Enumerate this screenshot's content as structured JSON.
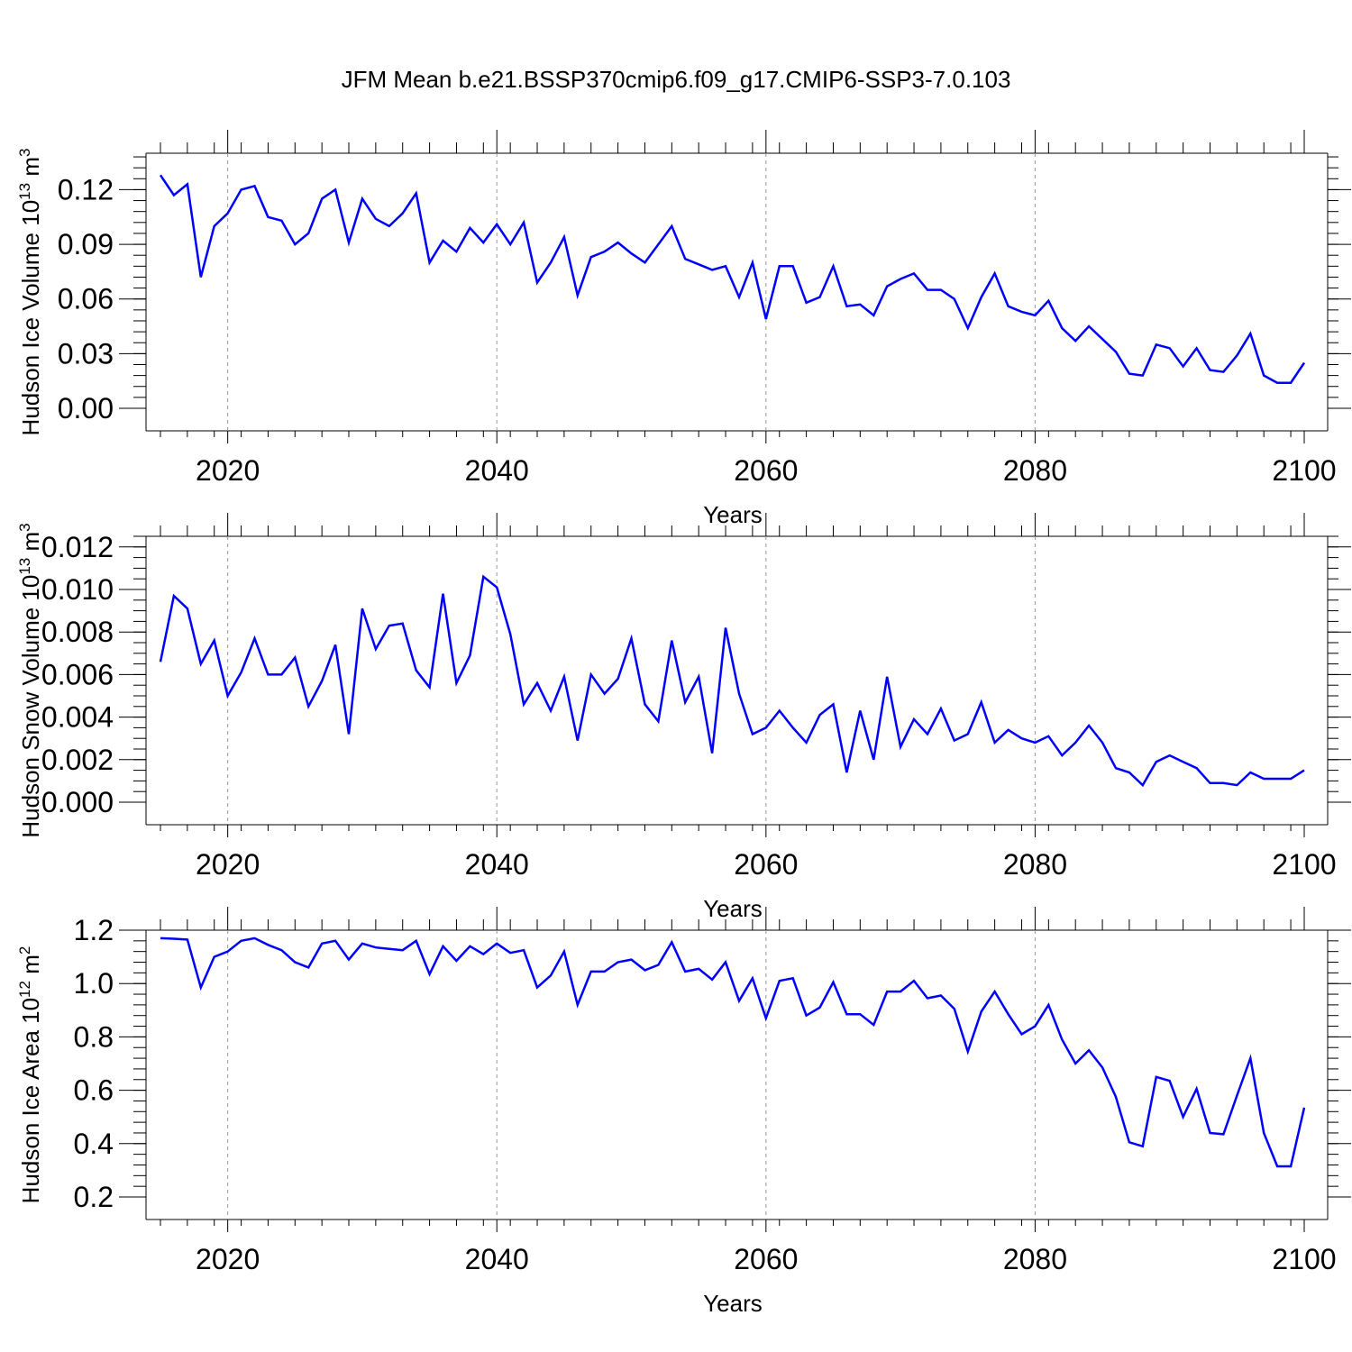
{
  "figure": {
    "title": "JFM Mean b.e21.BSSP370cmip6.f09_g17.CMIP6-SSP3-7.0.103",
    "line_color": "#0000ff",
    "gridline_color": "#999999"
  },
  "chart_data": [
    {
      "type": "line",
      "ylabel": {
        "main": "Hudson Ice Volume 10",
        "sup": "13",
        "unit": " m",
        "unit_sup": "3"
      },
      "xlabel": "Years",
      "xlim": [
        2015,
        2100
      ],
      "ylim": [
        0.0,
        0.14
      ],
      "xticks": [
        2020,
        2040,
        2060,
        2080,
        2100
      ],
      "xtick_labels": [
        "2020",
        "2040",
        "2060",
        "2080",
        "2100"
      ],
      "yticks": [
        0.0,
        0.03,
        0.06,
        0.09,
        0.12
      ],
      "ytick_labels": [
        "0.00",
        "0.03",
        "0.06",
        "0.09",
        "0.12"
      ],
      "y_minor_step": 0.006,
      "x_minor_step": 2,
      "grid": "vertical dashed at major x ticks",
      "series": [
        {
          "x": [
            2015,
            2016,
            2017,
            2018,
            2019,
            2020,
            2021,
            2022,
            2023,
            2024,
            2025,
            2026,
            2027,
            2028,
            2029,
            2030,
            2031,
            2032,
            2033,
            2034,
            2035,
            2036,
            2037,
            2038,
            2039,
            2040,
            2041,
            2042,
            2043,
            2044,
            2045,
            2046,
            2047,
            2048,
            2049,
            2050,
            2051,
            2052,
            2053,
            2054,
            2055,
            2056,
            2057,
            2058,
            2059,
            2060,
            2061,
            2062,
            2063,
            2064,
            2065,
            2066,
            2067,
            2068,
            2069,
            2070,
            2071,
            2072,
            2073,
            2074,
            2075,
            2076,
            2077,
            2078,
            2079,
            2080,
            2081,
            2082,
            2083,
            2084,
            2085,
            2086,
            2087,
            2088,
            2089,
            2090,
            2091,
            2092,
            2093,
            2094,
            2095,
            2096,
            2097,
            2098,
            2099,
            2100
          ],
          "values": [
            0.128,
            0.117,
            0.123,
            0.072,
            0.1,
            0.107,
            0.12,
            0.122,
            0.105,
            0.103,
            0.09,
            0.096,
            0.115,
            0.12,
            0.091,
            0.115,
            0.104,
            0.1,
            0.107,
            0.118,
            0.08,
            0.092,
            0.086,
            0.099,
            0.091,
            0.101,
            0.09,
            0.102,
            0.069,
            0.08,
            0.094,
            0.062,
            0.083,
            0.086,
            0.091,
            0.085,
            0.08,
            0.09,
            0.1,
            0.082,
            0.079,
            0.076,
            0.078,
            0.061,
            0.08,
            0.049,
            0.078,
            0.078,
            0.058,
            0.061,
            0.078,
            0.056,
            0.057,
            0.051,
            0.067,
            0.071,
            0.074,
            0.065,
            0.065,
            0.06,
            0.044,
            0.061,
            0.074,
            0.056,
            0.053,
            0.051,
            0.059,
            0.044,
            0.037,
            0.045,
            0.038,
            0.031,
            0.019,
            0.018,
            0.035,
            0.033,
            0.023,
            0.033,
            0.021,
            0.02,
            0.029,
            0.041,
            0.018,
            0.014,
            0.014,
            0.025
          ]
        }
      ]
    },
    {
      "type": "line",
      "ylabel": {
        "main": "Hudson Snow Volume 10",
        "sup": "13",
        "unit": " m",
        "unit_sup": "3"
      },
      "xlabel": "Years",
      "xlim": [
        2015,
        2100
      ],
      "ylim": [
        0.0,
        0.0125
      ],
      "xticks": [
        2020,
        2040,
        2060,
        2080,
        2100
      ],
      "xtick_labels": [
        "2020",
        "2040",
        "2060",
        "2080",
        "2100"
      ],
      "yticks": [
        0.0,
        0.002,
        0.004,
        0.006,
        0.008,
        0.01,
        0.012
      ],
      "ytick_labels": [
        "0.000",
        "0.002",
        "0.004",
        "0.006",
        "0.008",
        "0.010",
        "0.012"
      ],
      "y_minor_step": 0.0005,
      "x_minor_step": 2,
      "grid": "vertical dashed at major x ticks",
      "series": [
        {
          "x": [
            2015,
            2016,
            2017,
            2018,
            2019,
            2020,
            2021,
            2022,
            2023,
            2024,
            2025,
            2026,
            2027,
            2028,
            2029,
            2030,
            2031,
            2032,
            2033,
            2034,
            2035,
            2036,
            2037,
            2038,
            2039,
            2040,
            2041,
            2042,
            2043,
            2044,
            2045,
            2046,
            2047,
            2048,
            2049,
            2050,
            2051,
            2052,
            2053,
            2054,
            2055,
            2056,
            2057,
            2058,
            2059,
            2060,
            2061,
            2062,
            2063,
            2064,
            2065,
            2066,
            2067,
            2068,
            2069,
            2070,
            2071,
            2072,
            2073,
            2074,
            2075,
            2076,
            2077,
            2078,
            2079,
            2080,
            2081,
            2082,
            2083,
            2084,
            2085,
            2086,
            2087,
            2088,
            2089,
            2090,
            2091,
            2092,
            2093,
            2094,
            2095,
            2096,
            2097,
            2098,
            2099,
            2100
          ],
          "values": [
            0.0066,
            0.0097,
            0.0091,
            0.0065,
            0.0076,
            0.005,
            0.0061,
            0.0077,
            0.006,
            0.006,
            0.0068,
            0.0045,
            0.0057,
            0.0074,
            0.0032,
            0.0091,
            0.0072,
            0.0083,
            0.0084,
            0.0062,
            0.0054,
            0.0098,
            0.0056,
            0.0069,
            0.0106,
            0.0101,
            0.0079,
            0.0046,
            0.0056,
            0.0043,
            0.0059,
            0.0029,
            0.006,
            0.0051,
            0.0058,
            0.0077,
            0.0046,
            0.0038,
            0.0076,
            0.0047,
            0.0059,
            0.0023,
            0.0082,
            0.0051,
            0.0032,
            0.0035,
            0.0043,
            0.0035,
            0.0028,
            0.0041,
            0.0046,
            0.0014,
            0.0043,
            0.002,
            0.0059,
            0.0026,
            0.0039,
            0.0032,
            0.0044,
            0.0029,
            0.0032,
            0.0047,
            0.0028,
            0.0034,
            0.003,
            0.0028,
            0.0031,
            0.0022,
            0.0028,
            0.0036,
            0.0028,
            0.0016,
            0.0014,
            0.0008,
            0.0019,
            0.0022,
            0.0019,
            0.0016,
            0.0009,
            0.0009,
            0.0008,
            0.0014,
            0.0011,
            0.0011,
            0.0011,
            0.0015
          ]
        }
      ]
    },
    {
      "type": "line",
      "ylabel": {
        "main": "Hudson Ice Area 10",
        "sup": "12",
        "unit": " m",
        "unit_sup": "2"
      },
      "xlabel": "Years",
      "xlim": [
        2015,
        2100
      ],
      "ylim": [
        0.2,
        1.2
      ],
      "xticks": [
        2020,
        2040,
        2060,
        2080,
        2100
      ],
      "xtick_labels": [
        "2020",
        "2040",
        "2060",
        "2080",
        "2100"
      ],
      "yticks": [
        0.2,
        0.4,
        0.6,
        0.8,
        1.0,
        1.2
      ],
      "ytick_labels": [
        "0.2",
        "0.4",
        "0.6",
        "0.8",
        "1.0",
        "1.2"
      ],
      "y_minor_step": 0.04,
      "x_minor_step": 2,
      "grid": "vertical dashed at major x ticks",
      "series": [
        {
          "x": [
            2015,
            2016,
            2017,
            2018,
            2019,
            2020,
            2021,
            2022,
            2023,
            2024,
            2025,
            2026,
            2027,
            2028,
            2029,
            2030,
            2031,
            2032,
            2033,
            2034,
            2035,
            2036,
            2037,
            2038,
            2039,
            2040,
            2041,
            2042,
            2043,
            2044,
            2045,
            2046,
            2047,
            2048,
            2049,
            2050,
            2051,
            2052,
            2053,
            2054,
            2055,
            2056,
            2057,
            2058,
            2059,
            2060,
            2061,
            2062,
            2063,
            2064,
            2065,
            2066,
            2067,
            2068,
            2069,
            2070,
            2071,
            2072,
            2073,
            2074,
            2075,
            2076,
            2077,
            2078,
            2079,
            2080,
            2081,
            2082,
            2083,
            2084,
            2085,
            2086,
            2087,
            2088,
            2089,
            2090,
            2091,
            2092,
            2093,
            2094,
            2095,
            2096,
            2097,
            2098,
            2099,
            2100
          ],
          "values": [
            1.17,
            1.168,
            1.165,
            0.985,
            1.1,
            1.12,
            1.16,
            1.17,
            1.145,
            1.125,
            1.08,
            1.06,
            1.15,
            1.16,
            1.09,
            1.15,
            1.135,
            1.13,
            1.125,
            1.16,
            1.035,
            1.14,
            1.085,
            1.14,
            1.11,
            1.15,
            1.115,
            1.125,
            0.985,
            1.03,
            1.12,
            0.92,
            1.045,
            1.045,
            1.08,
            1.09,
            1.05,
            1.07,
            1.155,
            1.045,
            1.055,
            1.015,
            1.08,
            0.935,
            1.02,
            0.87,
            1.01,
            1.02,
            0.88,
            0.91,
            1.005,
            0.885,
            0.885,
            0.845,
            0.97,
            0.97,
            1.01,
            0.945,
            0.955,
            0.905,
            0.745,
            0.895,
            0.97,
            0.885,
            0.81,
            0.84,
            0.92,
            0.79,
            0.7,
            0.75,
            0.685,
            0.575,
            0.405,
            0.39,
            0.65,
            0.635,
            0.5,
            0.605,
            0.44,
            0.435,
            0.58,
            0.72,
            0.44,
            0.315,
            0.315,
            0.535
          ]
        }
      ]
    }
  ]
}
